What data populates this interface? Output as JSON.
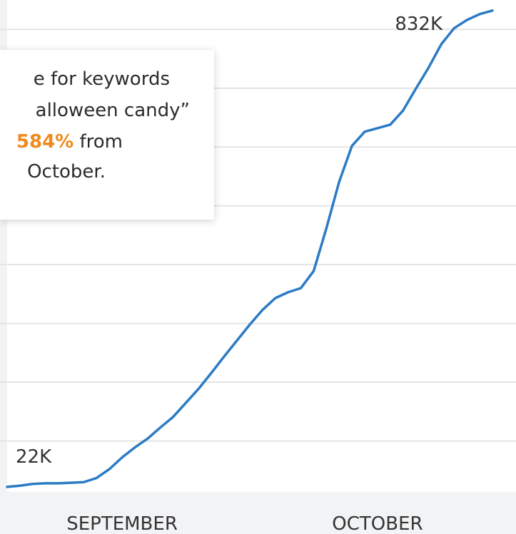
{
  "chart_data": {
    "type": "line",
    "categories": [
      null,
      null,
      null,
      null,
      null,
      null,
      null,
      null,
      null,
      "SEPTEMBER",
      null,
      null,
      null,
      null,
      null,
      null,
      null,
      null,
      null,
      null,
      null,
      null,
      null,
      null,
      null,
      null,
      null,
      null,
      null,
      "OCTOBER",
      null,
      null,
      null,
      null,
      null,
      null,
      null,
      null,
      null
    ],
    "values": [
      22,
      24,
      27,
      28,
      28,
      29,
      30,
      37,
      52,
      72,
      89,
      104,
      123,
      141,
      165,
      189,
      216,
      244,
      271,
      298,
      323,
      343,
      353,
      360,
      389,
      462,
      541,
      602,
      626,
      632,
      638,
      662,
      699,
      735,
      775,
      802,
      816,
      826,
      832
    ],
    "value_labels": [
      "22K",
      null,
      null,
      null,
      null,
      null,
      null,
      null,
      null,
      null,
      null,
      null,
      null,
      null,
      null,
      null,
      null,
      null,
      null,
      null,
      null,
      null,
      null,
      null,
      null,
      null,
      null,
      null,
      null,
      null,
      null,
      null,
      null,
      null,
      null,
      null,
      null,
      null,
      "832K"
    ],
    "color": "#2b7bc4",
    "ylim": [
      0,
      850
    ],
    "yticks": [
      100,
      200,
      300,
      400,
      500,
      600,
      700,
      800
    ],
    "grid": true,
    "annotation": {
      "line1": "e for keywords",
      "line2": "alloween candy”",
      "highlight": "584%",
      "line3": "from",
      "line4": "October."
    }
  }
}
